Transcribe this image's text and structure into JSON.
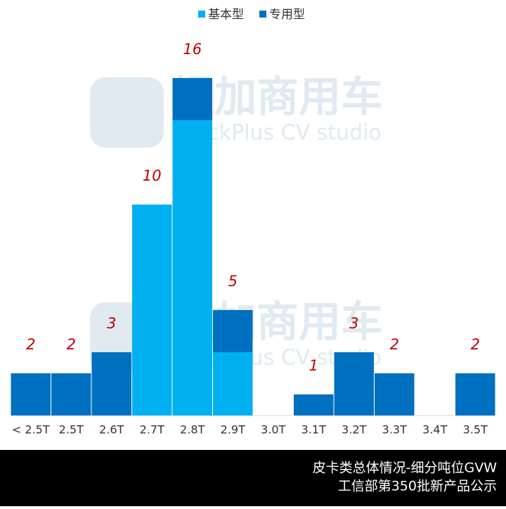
{
  "chart_data": {
    "type": "stacked-bar",
    "categories": [
      "< 2.5T",
      "2.5T",
      "2.6T",
      "2.7T",
      "2.8T",
      "2.9T",
      "3.0T",
      "3.1T",
      "3.2T",
      "3.3T",
      "3.4T",
      "3.5T"
    ],
    "series": [
      {
        "name": "基本型",
        "color": "#00b0f0",
        "values": [
          0,
          0,
          0,
          10,
          14,
          3,
          0,
          0,
          0,
          0,
          0,
          0
        ]
      },
      {
        "name": "专用型",
        "color": "#0070c0",
        "values": [
          2,
          2,
          3,
          0,
          2,
          2,
          0,
          1,
          3,
          2,
          0,
          2
        ]
      }
    ],
    "totals": [
      2,
      2,
      3,
      10,
      16,
      5,
      null,
      1,
      3,
      2,
      null,
      2
    ],
    "label_color": "#c00000",
    "legend": "top",
    "watermark": [
      "提加商用车",
      "TruckPlus CV studio"
    ],
    "footer": [
      "皮卡类总体情况-细分吨位GVW",
      "工信部第350批新产品公示"
    ]
  }
}
